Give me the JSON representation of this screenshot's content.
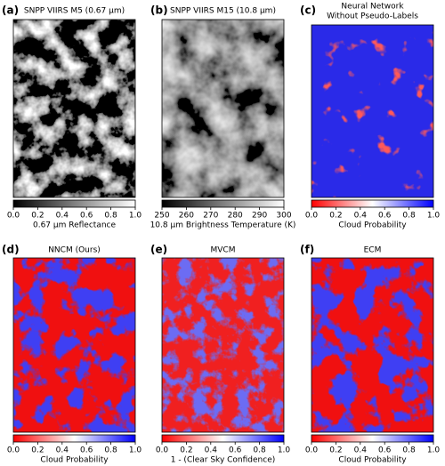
{
  "panels": [
    {
      "label": "(a)",
      "title_lines": [
        "SNPP VIIRS M5 (0.67 µm)"
      ],
      "colormap": "gray",
      "colorbar": {
        "ticks": [
          {
            "value": 0,
            "label": "0.0"
          },
          {
            "value": 0.2,
            "label": "0.2"
          },
          {
            "value": 0.4,
            "label": "0.4"
          },
          {
            "value": 0.6,
            "label": "0.6"
          },
          {
            "value": 0.8,
            "label": "0.8"
          },
          {
            "value": 1,
            "label": "1.0"
          }
        ],
        "label": "0.67 µm Reflectance"
      }
    },
    {
      "label": "(b)",
      "title_lines": [
        "SNPP VIIRS M15 (10.8 µm)"
      ],
      "colormap": "gray",
      "colorbar": {
        "ticks": [
          250,
          260,
          270,
          280,
          290,
          300
        ],
        "label": "10.8 µm Brightness Temperature (K)"
      }
    },
    {
      "label": "(c)",
      "title_lines": [
        "Neural Network",
        "Without Pseudo-Labels"
      ],
      "colormap": "bwr",
      "colorbar": {
        "ticks": [
          {
            "value": 0,
            "label": "0.0"
          },
          {
            "value": 0.2,
            "label": "0.2"
          },
          {
            "value": 0.4,
            "label": "0.4"
          },
          {
            "value": 0.6,
            "label": "0.6"
          },
          {
            "value": 0.8,
            "label": "0.8"
          },
          {
            "value": 1,
            "label": "1.0"
          }
        ],
        "label": "Cloud Probability"
      }
    },
    {
      "label": "(d)",
      "title_lines": [
        "NNCM (Ours)"
      ],
      "colormap": "bwr",
      "colorbar": {
        "ticks": [
          {
            "value": 0,
            "label": "0.0"
          },
          {
            "value": 0.2,
            "label": "0.2"
          },
          {
            "value": 0.4,
            "label": "0.4"
          },
          {
            "value": 0.6,
            "label": "0.6"
          },
          {
            "value": 0.8,
            "label": "0.8"
          },
          {
            "value": 1,
            "label": "1.0"
          }
        ],
        "label": "Cloud Probability"
      }
    },
    {
      "label": "(e)",
      "title_lines": [
        "MVCM"
      ],
      "colormap": "bwr",
      "colorbar": {
        "ticks": [
          {
            "value": 0,
            "label": "0.0"
          },
          {
            "value": 0.2,
            "label": "0.2"
          },
          {
            "value": 0.4,
            "label": "0.4"
          },
          {
            "value": 0.6,
            "label": "0.6"
          },
          {
            "value": 0.8,
            "label": "0.8"
          },
          {
            "value": 1,
            "label": "1.0"
          }
        ],
        "label": "1 - (Clear Sky Confidence)"
      }
    },
    {
      "label": "(f)",
      "title_lines": [
        "ECM"
      ],
      "colormap": "bwr",
      "colorbar": {
        "ticks": [
          {
            "value": 0,
            "label": "0.0"
          },
          {
            "value": 0.2,
            "label": "0.2"
          },
          {
            "value": 0.4,
            "label": "0.4"
          },
          {
            "value": 0.6,
            "label": "0.6"
          },
          {
            "value": 0.8,
            "label": "0.8"
          },
          {
            "value": 1,
            "label": "1.0"
          }
        ],
        "label": "Cloud Probability"
      }
    }
  ]
}
